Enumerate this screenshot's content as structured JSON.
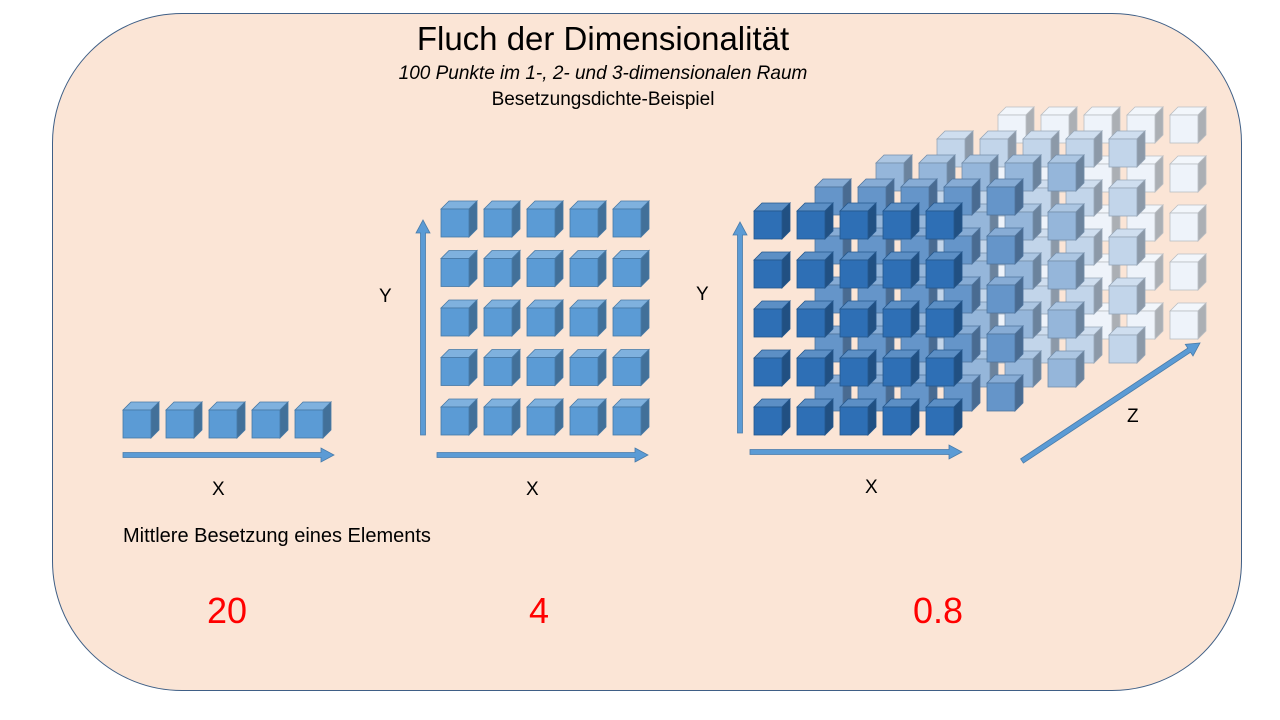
{
  "diagram": {
    "title": "Fluch der Dimensionalität",
    "subtitle": "100 Punkte im 1-, 2- und 3-dimensionalen Raum",
    "subtitle2": "Besetzungsdichte-Beispiel",
    "caption": "Mittlere Besetzung eines Elements",
    "panels": [
      {
        "dimension": 1,
        "x_label": "X",
        "value": "20"
      },
      {
        "dimension": 2,
        "x_label": "X",
        "y_label": "Y",
        "value": "4"
      },
      {
        "dimension": 3,
        "x_label": "X",
        "y_label": "Y",
        "z_label": "Z",
        "value": "0.8"
      }
    ],
    "colors": {
      "background": "#fbe5d6",
      "border": "#3f5f86",
      "cube_1d_2d": "#5b9bd5",
      "cube_3d_front": "#2e6fb5",
      "cube_3d_back": "#eef3fa",
      "arrow": "#5b9bd5",
      "value": "#ff0000"
    }
  }
}
